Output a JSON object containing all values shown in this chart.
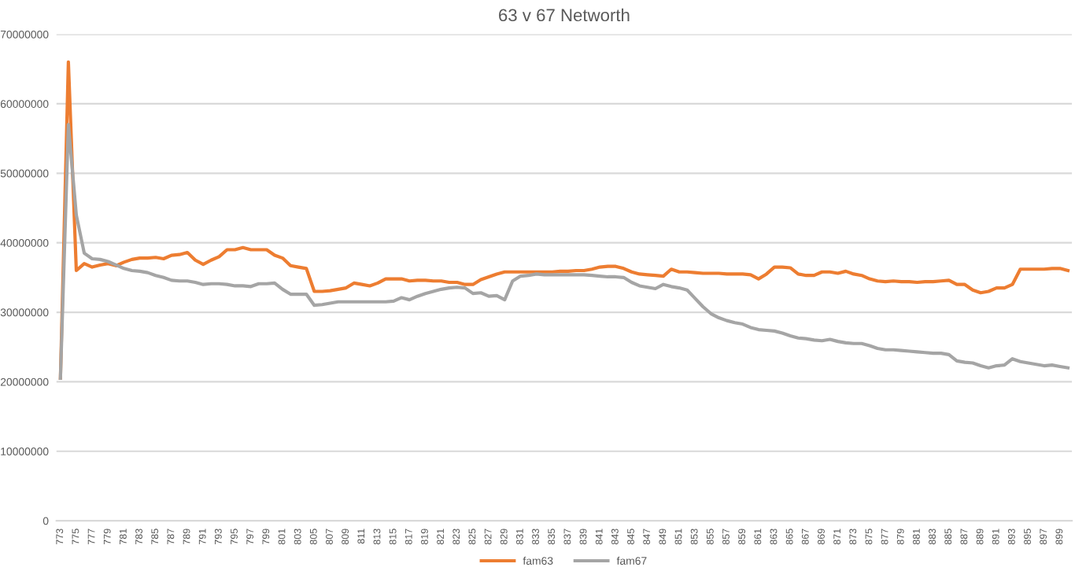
{
  "chart_data": {
    "type": "line",
    "title": "63 v 67 Networth",
    "categories": [
      "773",
      null,
      "775",
      null,
      "777",
      null,
      "779",
      null,
      "781",
      null,
      "783",
      null,
      "785",
      null,
      "787",
      null,
      "789",
      null,
      "791",
      null,
      "793",
      null,
      "795",
      null,
      "797",
      null,
      "799",
      null,
      "801",
      null,
      "803",
      null,
      "805",
      null,
      "807",
      null,
      "809",
      null,
      "811",
      null,
      "813",
      null,
      "815",
      null,
      "817",
      null,
      "819",
      null,
      "821",
      null,
      "823",
      null,
      "825",
      null,
      "827",
      null,
      "829",
      null,
      "831",
      null,
      "833",
      null,
      "835",
      null,
      "837",
      null,
      "839",
      null,
      "841",
      null,
      "843",
      null,
      "845",
      null,
      "847",
      null,
      "849",
      null,
      "851",
      null,
      "853",
      null,
      "855",
      null,
      "857",
      null,
      "859",
      null,
      "861",
      null,
      "863",
      null,
      "865",
      null,
      "867",
      null,
      "869",
      null,
      "871",
      null,
      "873",
      null,
      "875",
      null,
      "877",
      null,
      "879",
      null,
      "881",
      null,
      "883",
      null,
      "885",
      null,
      "887",
      null,
      "889",
      null,
      "891",
      null,
      "893",
      null,
      "895",
      null,
      "897",
      null,
      "899",
      null
    ],
    "series": [
      {
        "name": "fam63",
        "color": "#ed7d31",
        "values": [
          20500000,
          66000000,
          36000000,
          37000000,
          36500000,
          36800000,
          37000000,
          36700000,
          37200000,
          37600000,
          37800000,
          37800000,
          37900000,
          37700000,
          38200000,
          38300000,
          38600000,
          37500000,
          36900000,
          37500000,
          38000000,
          39000000,
          39000000,
          39300000,
          39000000,
          39000000,
          39000000,
          38200000,
          37800000,
          36700000,
          36500000,
          36300000,
          33000000,
          33000000,
          33100000,
          33300000,
          33500000,
          34200000,
          34000000,
          33800000,
          34200000,
          34800000,
          34800000,
          34800000,
          34500000,
          34600000,
          34600000,
          34500000,
          34500000,
          34300000,
          34300000,
          34000000,
          34000000,
          34700000,
          35100000,
          35500000,
          35800000,
          35800000,
          35800000,
          35800000,
          35800000,
          35800000,
          35800000,
          35900000,
          35900000,
          36000000,
          36000000,
          36200000,
          36500000,
          36600000,
          36600000,
          36300000,
          35800000,
          35500000,
          35400000,
          35300000,
          35200000,
          36200000,
          35800000,
          35800000,
          35700000,
          35600000,
          35600000,
          35600000,
          35500000,
          35500000,
          35500000,
          35400000,
          34800000,
          35500000,
          36500000,
          36500000,
          36400000,
          35500000,
          35300000,
          35300000,
          35800000,
          35800000,
          35600000,
          35900000,
          35500000,
          35300000,
          34800000,
          34500000,
          34400000,
          34500000,
          34400000,
          34400000,
          34300000,
          34400000,
          34400000,
          34500000,
          34600000,
          34000000,
          34000000,
          33200000,
          32800000,
          33000000,
          33500000,
          33500000,
          34000000,
          36200000,
          36200000,
          36200000,
          36200000,
          36300000,
          36300000,
          36000000
        ]
      },
      {
        "name": "fam67",
        "color": "#a5a5a5",
        "values": [
          20500000,
          57000000,
          44000000,
          38500000,
          37700000,
          37600000,
          37300000,
          36800000,
          36300000,
          36000000,
          35900000,
          35700000,
          35300000,
          35000000,
          34600000,
          34500000,
          34500000,
          34300000,
          34000000,
          34100000,
          34100000,
          34000000,
          33800000,
          33800000,
          33700000,
          34100000,
          34100000,
          34200000,
          33300000,
          32600000,
          32600000,
          32600000,
          31000000,
          31100000,
          31300000,
          31500000,
          31500000,
          31500000,
          31500000,
          31500000,
          31500000,
          31500000,
          31600000,
          32100000,
          31800000,
          32300000,
          32700000,
          33000000,
          33300000,
          33500000,
          33600000,
          33500000,
          32700000,
          32800000,
          32300000,
          32400000,
          31800000,
          34500000,
          35200000,
          35300000,
          35500000,
          35400000,
          35400000,
          35400000,
          35400000,
          35400000,
          35400000,
          35300000,
          35200000,
          35100000,
          35100000,
          35000000,
          34300000,
          33800000,
          33600000,
          33400000,
          34000000,
          33700000,
          33500000,
          33200000,
          32000000,
          30800000,
          29800000,
          29200000,
          28800000,
          28500000,
          28300000,
          27800000,
          27500000,
          27400000,
          27300000,
          27000000,
          26600000,
          26300000,
          26200000,
          26000000,
          25900000,
          26100000,
          25800000,
          25600000,
          25500000,
          25500000,
          25200000,
          24800000,
          24600000,
          24600000,
          24500000,
          24400000,
          24300000,
          24200000,
          24100000,
          24100000,
          23900000,
          23000000,
          22800000,
          22700000,
          22300000,
          22000000,
          22300000,
          22400000,
          23300000,
          22900000,
          22700000,
          22500000,
          22300000,
          22400000,
          22200000,
          22000000
        ]
      }
    ],
    "ylim": [
      0,
      70000000
    ],
    "yticks": [
      0,
      10000000,
      20000000,
      30000000,
      40000000,
      50000000,
      60000000,
      70000000
    ],
    "grid": "y",
    "legend": "bottom",
    "marker": "none",
    "line_style": "solid"
  }
}
